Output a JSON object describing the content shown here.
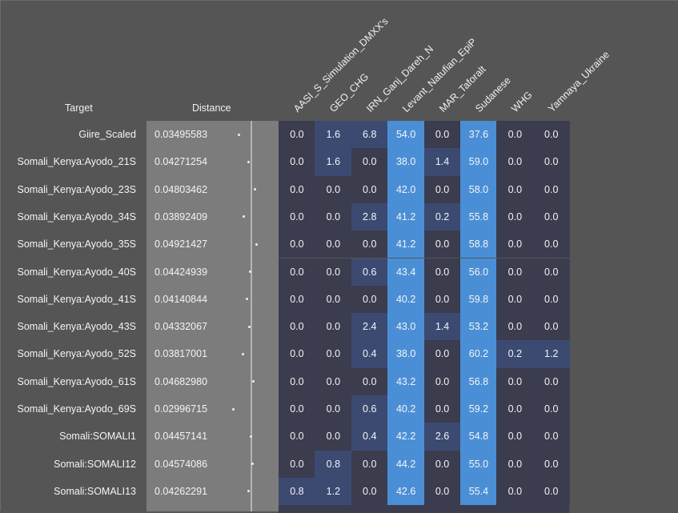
{
  "chart_data": {
    "type": "table",
    "headers": {
      "target": "Target",
      "distance": "Distance"
    },
    "columns": [
      "AASI_S_Simulation_DMXX's",
      "GEO_CHG",
      "IRN_Ganj_Dareh_N",
      "Levant_Natufian_EpiP",
      "MAR_Taforalt",
      "Sudanese",
      "WHG",
      "Yamnaya_Ukraine"
    ],
    "rows": [
      {
        "target": "Giire_Scaled",
        "distance": "0.03495583",
        "values": [
          "0.0",
          "1.6",
          "6.8",
          "54.0",
          "0.0",
          "37.6",
          "0.0",
          "0.0"
        ]
      },
      {
        "target": "Somali_Kenya:Ayodo_21S",
        "distance": "0.04271254",
        "values": [
          "0.0",
          "1.6",
          "0.0",
          "38.0",
          "1.4",
          "59.0",
          "0.0",
          "0.0"
        ]
      },
      {
        "target": "Somali_Kenya:Ayodo_23S",
        "distance": "0.04803462",
        "values": [
          "0.0",
          "0.0",
          "0.0",
          "42.0",
          "0.0",
          "58.0",
          "0.0",
          "0.0"
        ]
      },
      {
        "target": "Somali_Kenya:Ayodo_34S",
        "distance": "0.03892409",
        "values": [
          "0.0",
          "0.0",
          "2.8",
          "41.2",
          "0.2",
          "55.8",
          "0.0",
          "0.0"
        ]
      },
      {
        "target": "Somali_Kenya:Ayodo_35S",
        "distance": "0.04921427",
        "values": [
          "0.0",
          "0.0",
          "0.0",
          "41.2",
          "0.0",
          "58.8",
          "0.0",
          "0.0"
        ]
      },
      {
        "target": "Somali_Kenya:Ayodo_40S",
        "distance": "0.04424939",
        "values": [
          "0.0",
          "0.0",
          "0.6",
          "43.4",
          "0.0",
          "56.0",
          "0.0",
          "0.0"
        ]
      },
      {
        "target": "Somali_Kenya:Ayodo_41S",
        "distance": "0.04140844",
        "values": [
          "0.0",
          "0.0",
          "0.0",
          "40.2",
          "0.0",
          "59.8",
          "0.0",
          "0.0"
        ]
      },
      {
        "target": "Somali_Kenya:Ayodo_43S",
        "distance": "0.04332067",
        "values": [
          "0.0",
          "0.0",
          "2.4",
          "43.0",
          "1.4",
          "53.2",
          "0.0",
          "0.0"
        ]
      },
      {
        "target": "Somali_Kenya:Ayodo_52S",
        "distance": "0.03817001",
        "values": [
          "0.0",
          "0.0",
          "0.4",
          "38.0",
          "0.0",
          "60.2",
          "0.2",
          "1.2"
        ]
      },
      {
        "target": "Somali_Kenya:Ayodo_61S",
        "distance": "0.04682980",
        "values": [
          "0.0",
          "0.0",
          "0.0",
          "43.2",
          "0.0",
          "56.8",
          "0.0",
          "0.0"
        ]
      },
      {
        "target": "Somali_Kenya:Ayodo_69S",
        "distance": "0.02996715",
        "values": [
          "0.0",
          "0.0",
          "0.6",
          "40.2",
          "0.0",
          "59.2",
          "0.0",
          "0.0"
        ]
      },
      {
        "target": "Somali:SOMALI1",
        "distance": "0.04457141",
        "values": [
          "0.0",
          "0.0",
          "0.4",
          "42.2",
          "2.6",
          "54.8",
          "0.0",
          "0.0"
        ]
      },
      {
        "target": "Somali:SOMALI12",
        "distance": "0.04574086",
        "values": [
          "0.0",
          "0.8",
          "0.0",
          "44.2",
          "0.0",
          "55.0",
          "0.0",
          "0.0"
        ]
      },
      {
        "target": "Somali:SOMALI13",
        "distance": "0.04262291",
        "values": [
          "0.8",
          "1.2",
          "0.0",
          "42.6",
          "0.0",
          "55.4",
          "0.0",
          "0.0"
        ]
      }
    ],
    "distance_reference": 0.045,
    "colors": {
      "background": "#555555",
      "distance_panel": "#7c7c7c",
      "zero": "#3b3c4e",
      "low": "#3c4a72",
      "mid": "#3f63a6",
      "high": "#4a8fd6"
    }
  }
}
